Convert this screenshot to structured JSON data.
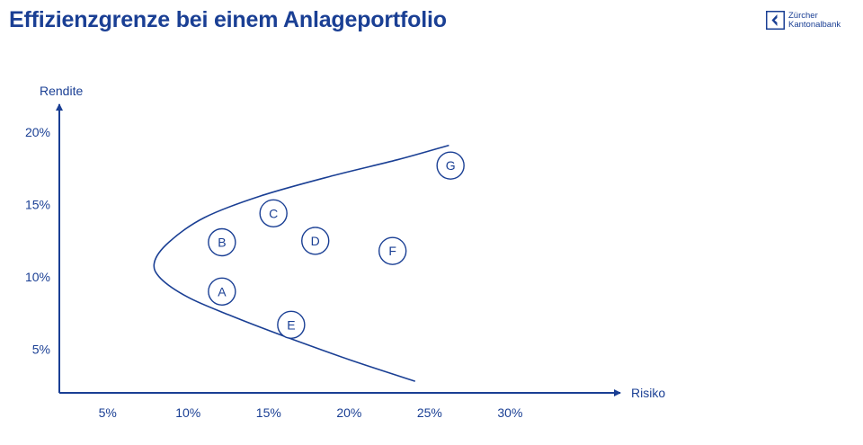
{
  "title": "Effizienzgrenze bei einem Anlageportfolio",
  "logo": {
    "line1": "Zürcher",
    "line2": "Kantonalbank",
    "icon": "zkb-key-icon",
    "color": "#1a3f94"
  },
  "chart_data": {
    "type": "scatter",
    "xlabel": "Risiko",
    "ylabel": "Rendite",
    "xlim": [
      2,
      34.5
    ],
    "ylim": [
      2,
      21
    ],
    "x_ticks": [
      5,
      10,
      15,
      20,
      25,
      30
    ],
    "x_tick_labels": [
      "5%",
      "10%",
      "15%",
      "20%",
      "25%",
      "30%"
    ],
    "y_ticks": [
      5,
      10,
      15,
      20
    ],
    "y_tick_labels": [
      "5%",
      "10%",
      "15%",
      "20%"
    ],
    "grid": false,
    "color": "#1a3f94",
    "points": [
      {
        "label": "A",
        "x": 12.1,
        "y": 9.0
      },
      {
        "label": "B",
        "x": 12.1,
        "y": 12.4
      },
      {
        "label": "C",
        "x": 15.3,
        "y": 14.4
      },
      {
        "label": "D",
        "x": 17.9,
        "y": 12.5
      },
      {
        "label": "E",
        "x": 16.4,
        "y": 6.7
      },
      {
        "label": "F",
        "x": 22.7,
        "y": 11.8
      },
      {
        "label": "G",
        "x": 26.3,
        "y": 17.7
      }
    ],
    "frontier": [
      {
        "x": 24.1,
        "y": 2.8
      },
      {
        "x": 20.0,
        "y": 4.3
      },
      {
        "x": 16.0,
        "y": 5.9
      },
      {
        "x": 12.5,
        "y": 7.4
      },
      {
        "x": 10.0,
        "y": 8.6
      },
      {
        "x": 8.3,
        "y": 9.9
      },
      {
        "x": 7.9,
        "y": 11.0
      },
      {
        "x": 8.8,
        "y": 12.4
      },
      {
        "x": 11.0,
        "y": 14.1
      },
      {
        "x": 14.5,
        "y": 15.6
      },
      {
        "x": 19.0,
        "y": 17.0
      },
      {
        "x": 23.0,
        "y": 18.1
      },
      {
        "x": 26.2,
        "y": 19.1
      }
    ]
  }
}
